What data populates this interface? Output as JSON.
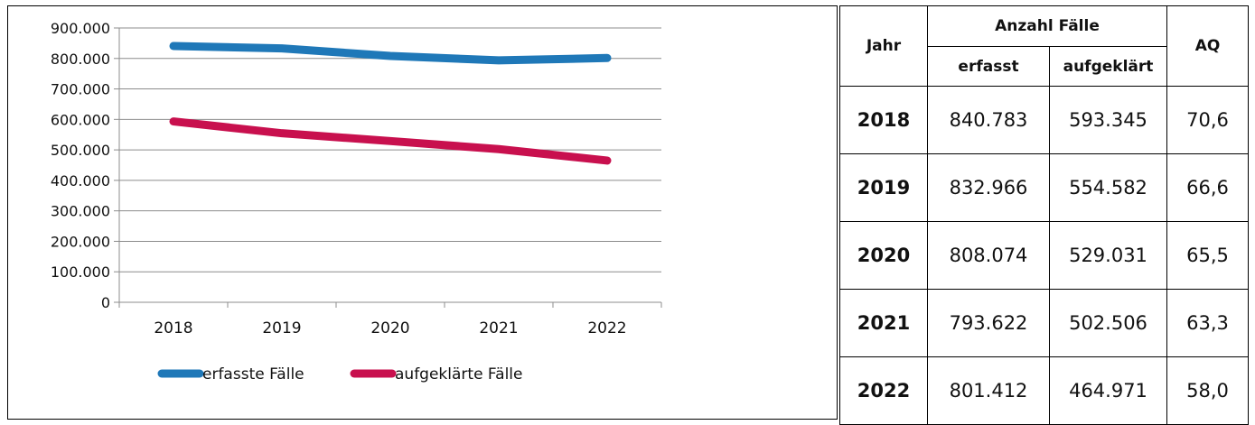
{
  "chart_data": {
    "type": "line",
    "categories": [
      "2018",
      "2019",
      "2020",
      "2021",
      "2022"
    ],
    "series": [
      {
        "name": "erfasste Fälle",
        "color": "#1F78B8",
        "values": [
          840783,
          832966,
          808074,
          793622,
          801412
        ]
      },
      {
        "name": "aufgeklärte Fälle",
        "color": "#C8104E",
        "values": [
          593345,
          554582,
          529031,
          502506,
          464971
        ]
      }
    ],
    "ylim": [
      0,
      900000
    ],
    "yticks": [
      0,
      100000,
      200000,
      300000,
      400000,
      500000,
      600000,
      700000,
      800000,
      900000
    ],
    "ytick_labels": [
      "0",
      "100.000",
      "200.000",
      "300.000",
      "400.000",
      "500.000",
      "600.000",
      "700.000",
      "800.000",
      "900.000"
    ],
    "grid": true,
    "legend_position": "bottom"
  },
  "table": {
    "header_year": "Jahr",
    "header_group": "Anzahl Fälle",
    "header_recorded": "erfasst",
    "header_solved": "aufgeklärt",
    "header_rate": "AQ",
    "rows": [
      {
        "year": "2018",
        "recorded": "840.783",
        "solved": "593.345",
        "rate": "70,6"
      },
      {
        "year": "2019",
        "recorded": "832.966",
        "solved": "554.582",
        "rate": "66,6"
      },
      {
        "year": "2020",
        "recorded": "808.074",
        "solved": "529.031",
        "rate": "65,5"
      },
      {
        "year": "2021",
        "recorded": "793.622",
        "solved": "502.506",
        "rate": "63,3"
      },
      {
        "year": "2022",
        "recorded": "801.412",
        "solved": "464.971",
        "rate": "58,0"
      }
    ]
  }
}
